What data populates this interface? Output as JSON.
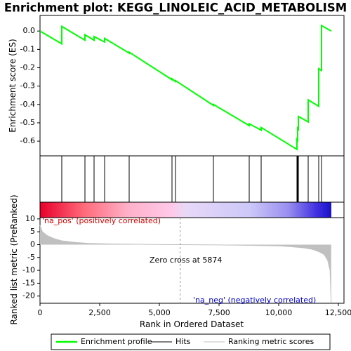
{
  "chart_data": {
    "type": "enrichment",
    "title": "Enrichment plot: KEGG_LINOLEIC_ACID_METABOLISM",
    "ylabel": "Enrichment score (ES)",
    "y2label": "Ranked list metric (PreRanked)",
    "xlabel": "Rank in Ordered Dataset",
    "xlim": [
      0,
      12735
    ],
    "xticks": [
      0,
      {
        "value": 2500,
        "label": "2,500"
      },
      {
        "value": 5000,
        "label": "5,000"
      },
      {
        "value": 7500,
        "label": "7,500"
      },
      {
        "value": 10000,
        "label": "10,000"
      },
      {
        "value": 12500,
        "label": "12,500"
      }
    ],
    "ylim": [
      -0.68,
      0.085
    ],
    "yticks": [
      {
        "value": 0,
        "label": "0.0"
      },
      -0.1,
      -0.2,
      -0.3,
      -0.4,
      -0.5,
      -0.6
    ],
    "y2lim": [
      -22.8,
      10.5
    ],
    "y2ticks": [
      10,
      5,
      0,
      -5,
      -10,
      -15,
      -20
    ],
    "series": [
      {
        "name": "Enrichment profile",
        "color": "#00ff00",
        "x": [
          0,
          912,
          912,
          1882,
          1882,
          2265,
          2265,
          2706,
          2706,
          3735,
          3735,
          5529,
          5529,
          5676,
          5676,
          7265,
          7265,
          8765,
          8765,
          9265,
          9265,
          10765,
          10765,
          10794,
          10794,
          10824,
          10824,
          11235,
          11235,
          11676,
          11676,
          11794,
          11794,
          12200
        ],
        "values": [
          0,
          -0.07,
          0.025,
          -0.05,
          -0.02,
          -0.05,
          -0.03,
          -0.06,
          -0.04,
          -0.12,
          -0.115,
          -0.265,
          -0.26,
          -0.275,
          -0.27,
          -0.405,
          -0.4,
          -0.515,
          -0.505,
          -0.54,
          -0.525,
          -0.645,
          -0.59,
          -0.595,
          -0.53,
          -0.535,
          -0.465,
          -0.495,
          -0.375,
          -0.41,
          -0.205,
          -0.215,
          0.03,
          0.0
        ]
      },
      {
        "name": "Hits",
        "color": "#000000",
        "x": [
          912,
          1882,
          2265,
          2706,
          3735,
          5529,
          5676,
          7265,
          8765,
          9265,
          10765,
          10794,
          10824,
          11235,
          11676,
          11794
        ]
      },
      {
        "name": "Ranking metric scores",
        "color": "#c0c0c0",
        "axis": "y2",
        "x": [
          0,
          100,
          300,
          600,
          900,
          1400,
          2000,
          3000,
          4500,
          5874,
          7500,
          9000,
          10000,
          10500,
          11000,
          11400,
          11700,
          11900,
          12050,
          12150,
          12200
        ],
        "values": [
          7.5,
          5,
          3.5,
          2.3,
          1.5,
          0.9,
          0.5,
          0.25,
          0.1,
          0,
          -0.1,
          -0.3,
          -0.5,
          -0.8,
          -1.2,
          -1.8,
          -2.8,
          -3.8,
          -6,
          -10,
          -22.5
        ]
      }
    ],
    "zero_cross": 5874,
    "annotations": [
      "'na_pos' (positively correlated)",
      "Zero cross at 5874",
      "'na_neg' (negatively correlated)"
    ]
  }
}
